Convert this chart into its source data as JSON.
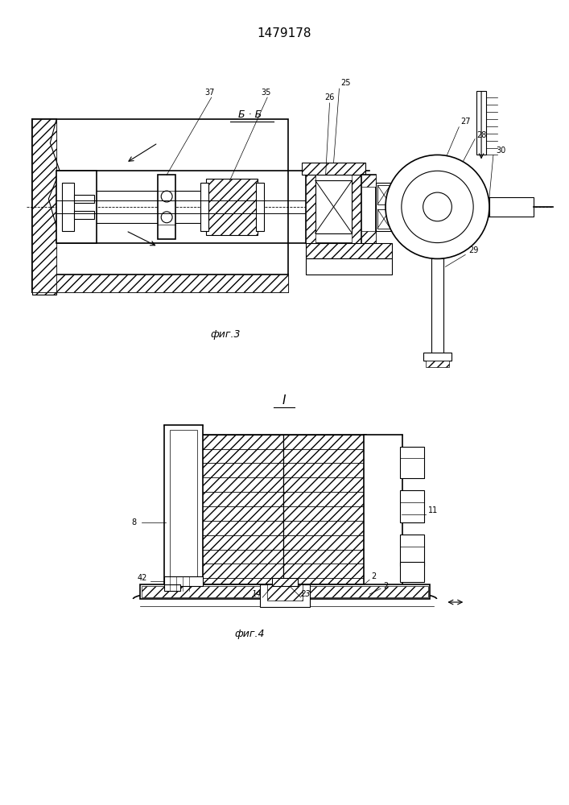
{
  "title": "1479178",
  "title_fontsize": 11,
  "fig3_label": "фиг.3",
  "fig4_label": "фиг.4",
  "bg_color": "#ffffff",
  "line_color": "#000000"
}
